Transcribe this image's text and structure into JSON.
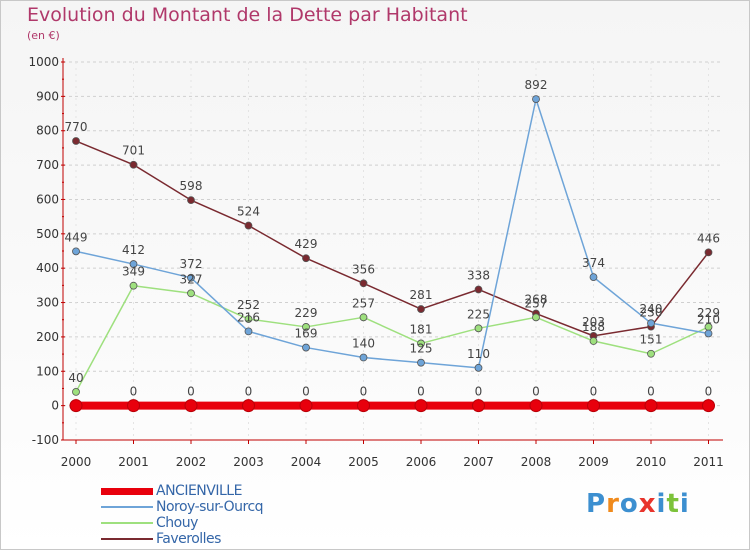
{
  "header": {
    "title": "Evolution du Montant de la Dette par Habitant",
    "subtitle": "(en €)"
  },
  "colors": {
    "title": "#b0386a",
    "axis": "#c00000",
    "grid": "#d0d0d0"
  },
  "logo": {
    "text": "Proxiti",
    "letter_colors": [
      "#3c8fd0",
      "#f08a1c",
      "#3c8fd0",
      "#e8342c",
      "#3c8fd0",
      "#7cc23a",
      "#3c8fd0"
    ]
  },
  "chart_data": {
    "type": "line",
    "x": [
      "2000",
      "2001",
      "2002",
      "2003",
      "2004",
      "2005",
      "2006",
      "2007",
      "2008",
      "2009",
      "2010",
      "2011"
    ],
    "yticks": [
      "1000",
      "900",
      "800",
      "700",
      "600",
      "500",
      "400",
      "300",
      "200",
      "100",
      "0",
      "-100"
    ],
    "ylim": [
      -100,
      1000
    ],
    "grid": "horizontal dashed",
    "legend_position": "bottom-left",
    "series": [
      {
        "name": "ANCIENVILLE",
        "color": "#e8000c",
        "values": [
          0,
          0,
          0,
          0,
          0,
          0,
          0,
          0,
          0,
          0,
          0,
          0
        ],
        "labels": [
          "",
          "0",
          "0",
          "0",
          "0",
          "0",
          "0",
          "0",
          "0",
          "0",
          "0",
          "0"
        ]
      },
      {
        "name": "Noroy-sur-Ourcq",
        "color": "#6ea4d8",
        "values": [
          449,
          412,
          372,
          216,
          169,
          140,
          125,
          110,
          892,
          374,
          240,
          210
        ],
        "labels": [
          "449",
          "412",
          "372",
          "216",
          "169",
          "140",
          "125",
          "110",
          "892",
          "374",
          "240",
          "210"
        ]
      },
      {
        "name": "Chouy",
        "color": "#9ee07e",
        "values": [
          40,
          349,
          327,
          252,
          229,
          257,
          181,
          225,
          257,
          188,
          151,
          229
        ],
        "labels": [
          "40",
          "349",
          "327",
          "252",
          "229",
          "257",
          "181",
          "225",
          "257",
          "188",
          "151",
          "229"
        ]
      },
      {
        "name": "Faverolles",
        "color": "#7a2a30",
        "values": [
          770,
          701,
          598,
          524,
          429,
          356,
          281,
          338,
          268,
          203,
          230,
          446
        ],
        "labels": [
          "770",
          "701",
          "598",
          "524",
          "429",
          "356",
          "281",
          "338",
          "268",
          "203",
          "230",
          "446"
        ]
      }
    ]
  }
}
